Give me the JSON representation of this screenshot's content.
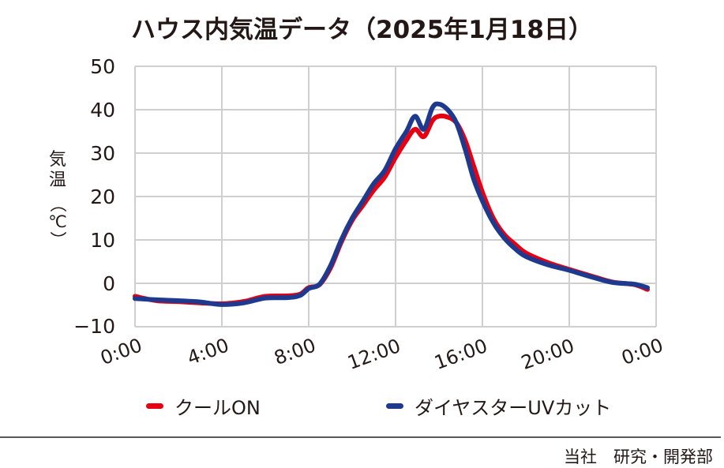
{
  "title": "ハウス内気温データ（2025年1月18日）",
  "y_axis": {
    "label_chars": [
      "気",
      "温",
      "（℃）"
    ],
    "ticks": [
      "50",
      "40",
      "30",
      "20",
      "10",
      "0",
      "−10"
    ]
  },
  "x_axis": {
    "ticks": [
      "0:00",
      "4:00",
      "8:00",
      "12:00",
      "16:00",
      "20:00",
      "0:00"
    ]
  },
  "legend": {
    "items": [
      {
        "label": "クールON",
        "color": "#e60012"
      },
      {
        "label": "ダイヤスターUVカット",
        "color": "#1d3a8f"
      }
    ]
  },
  "footer": {
    "credit": "当社　研究・開発部"
  },
  "chart_data": {
    "type": "line",
    "title": "ハウス内気温データ（2025年1月18日）",
    "xlabel": "",
    "ylabel": "気温（℃）",
    "ylim": [
      -10,
      50
    ],
    "xlim_hours": [
      0,
      24
    ],
    "x_tick_labels": [
      "0:00",
      "4:00",
      "8:00",
      "12:00",
      "16:00",
      "20:00",
      "0:00"
    ],
    "y_ticks": [
      -10,
      0,
      10,
      20,
      30,
      40,
      50
    ],
    "grid": true,
    "legend_position": "bottom",
    "x_hours": [
      0,
      1,
      2,
      3,
      4,
      5,
      6,
      7,
      7.6,
      8,
      8.5,
      9,
      9.5,
      10,
      10.5,
      11,
      11.5,
      12,
      12.5,
      12.9,
      13.3,
      13.7,
      14,
      14.4,
      14.8,
      15.2,
      15.6,
      16,
      16.5,
      17,
      17.5,
      18,
      19,
      20,
      21,
      22,
      23,
      23.6
    ],
    "series": [
      {
        "name": "クールON",
        "color": "#e60012",
        "values": [
          -3.0,
          -4.0,
          -4.2,
          -4.5,
          -4.7,
          -4.2,
          -3.0,
          -2.9,
          -2.5,
          -1.0,
          -0.3,
          3.5,
          9.5,
          14.5,
          18.0,
          21.5,
          24.5,
          29.0,
          33.0,
          35.5,
          33.8,
          37.5,
          38.5,
          38.3,
          37.0,
          33.0,
          27.0,
          21.0,
          15.0,
          11.3,
          9.0,
          7.0,
          4.8,
          3.2,
          1.7,
          0.3,
          -0.3,
          -1.4
        ]
      },
      {
        "name": "ダイヤスターUVカット",
        "color": "#1d3a8f",
        "values": [
          -3.5,
          -3.8,
          -4.0,
          -4.3,
          -4.9,
          -4.5,
          -3.4,
          -3.3,
          -2.8,
          -1.2,
          -0.2,
          4.0,
          10.0,
          15.0,
          19.0,
          23.0,
          26.0,
          31.0,
          35.0,
          38.5,
          35.5,
          40.5,
          41.3,
          40.0,
          37.0,
          31.0,
          24.0,
          19.0,
          14.0,
          10.5,
          8.0,
          6.2,
          4.3,
          3.0,
          1.5,
          0.2,
          -0.2,
          -1.0
        ]
      }
    ]
  }
}
